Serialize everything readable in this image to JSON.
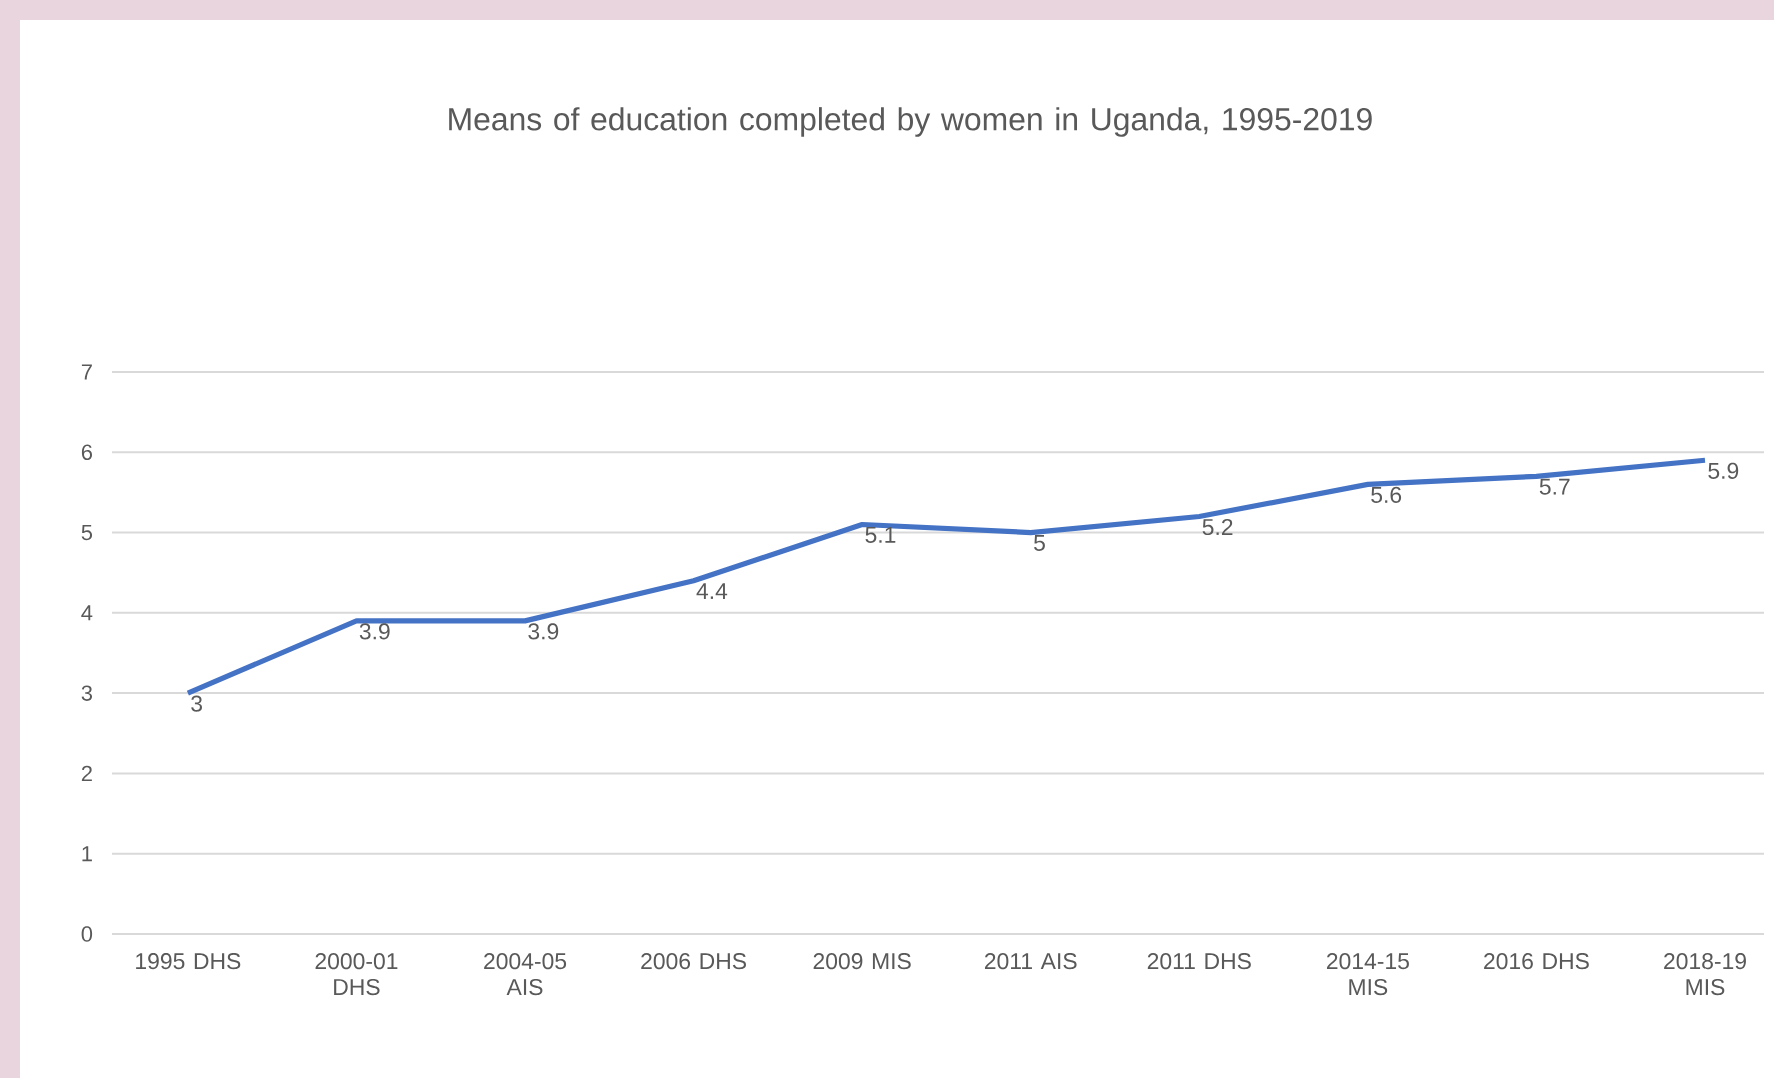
{
  "chart_data": {
    "type": "line",
    "title": "Means of education completed by women in Uganda, 1995-2019",
    "categories": [
      "1995 DHS",
      "2000-01 DHS",
      "2004-05 AIS",
      "2006 DHS",
      "2009 MIS",
      "2011 AIS",
      "2011 DHS",
      "2014-15 MIS",
      "2016 DHS",
      "2018-19 MIS"
    ],
    "values": [
      3,
      3.9,
      3.9,
      4.4,
      5.1,
      5,
      5.2,
      5.6,
      5.7,
      5.9
    ],
    "color": "#4472c4",
    "ylim": [
      0,
      7
    ],
    "yticks": [
      0,
      1,
      2,
      3,
      4,
      5,
      6,
      7
    ],
    "grid": "y",
    "data_labels": true,
    "marker": "none",
    "line_style": "solid"
  }
}
